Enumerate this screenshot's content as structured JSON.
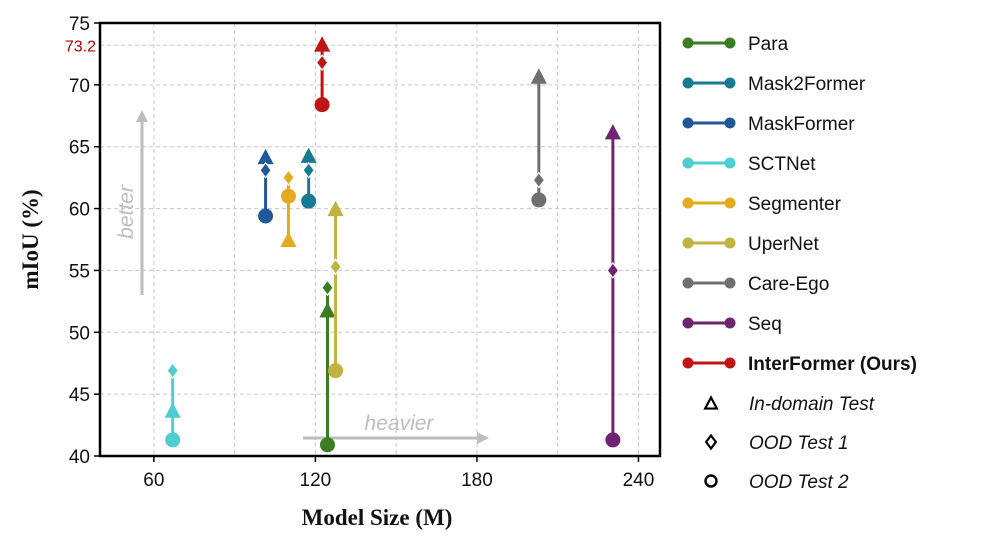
{
  "chart_data": {
    "type": "scatter",
    "title": "",
    "xlabel": "Model Size (M)",
    "ylabel": "mIoU (%)",
    "xlim": [
      40,
      248
    ],
    "ylim": [
      40,
      75
    ],
    "xticks": [
      60,
      120,
      180,
      240
    ],
    "yticks": [
      40,
      45,
      50,
      55,
      60,
      65,
      70,
      75
    ],
    "highlight_ytick": {
      "value": 73.2,
      "label": "73.2",
      "color": "#b00000"
    },
    "grid": true,
    "legend_position": "right",
    "series": [
      {
        "name": "Para",
        "color": "#3b7d23",
        "x": 124.5,
        "in_domain": 51.7,
        "ood1": 53.6,
        "ood2": 40.9
      },
      {
        "name": "Mask2Former",
        "color": "#177a92",
        "x": 117.5,
        "in_domain": 64.2,
        "ood1": 63.1,
        "ood2": 60.6
      },
      {
        "name": "MaskFormer",
        "color": "#21589a",
        "x": 101.5,
        "in_domain": 64.1,
        "ood1": 63.1,
        "ood2": 59.4
      },
      {
        "name": "SCTNet",
        "color": "#4ecdd2",
        "x": 67.0,
        "in_domain": 43.6,
        "ood1": 46.9,
        "ood2": 41.3
      },
      {
        "name": "Segmenter",
        "color": "#e3ac1c",
        "x": 110.0,
        "in_domain": 57.4,
        "ood1": 62.5,
        "ood2": 61.0
      },
      {
        "name": "UperNet",
        "color": "#c2b23f",
        "x": 127.5,
        "in_domain": 59.9,
        "ood1": 55.3,
        "ood2": 46.9
      },
      {
        "name": "Care-Ego",
        "color": "#6f6f6f",
        "x": 203.0,
        "in_domain": 70.6,
        "ood1": 62.3,
        "ood2": 60.7
      },
      {
        "name": "Seq",
        "color": "#6e246e",
        "x": 230.5,
        "in_domain": 66.1,
        "ood1": 55.0,
        "ood2": 41.3
      },
      {
        "name": "InterFormer (Ours)",
        "color": "#c01515",
        "x": 122.5,
        "in_domain": 73.2,
        "ood1": 71.8,
        "ood2": 68.4,
        "bold": true
      }
    ],
    "markers": [
      {
        "label": "In-domain Test",
        "shape": "triangle"
      },
      {
        "label": "OOD Test 1",
        "shape": "diamond"
      },
      {
        "label": "OOD Test 2",
        "shape": "circle"
      }
    ],
    "annotations": [
      {
        "text": "better",
        "direction": "up",
        "color": "#bdbdbd"
      },
      {
        "text": "heavier",
        "direction": "right",
        "color": "#bdbdbd"
      }
    ]
  }
}
